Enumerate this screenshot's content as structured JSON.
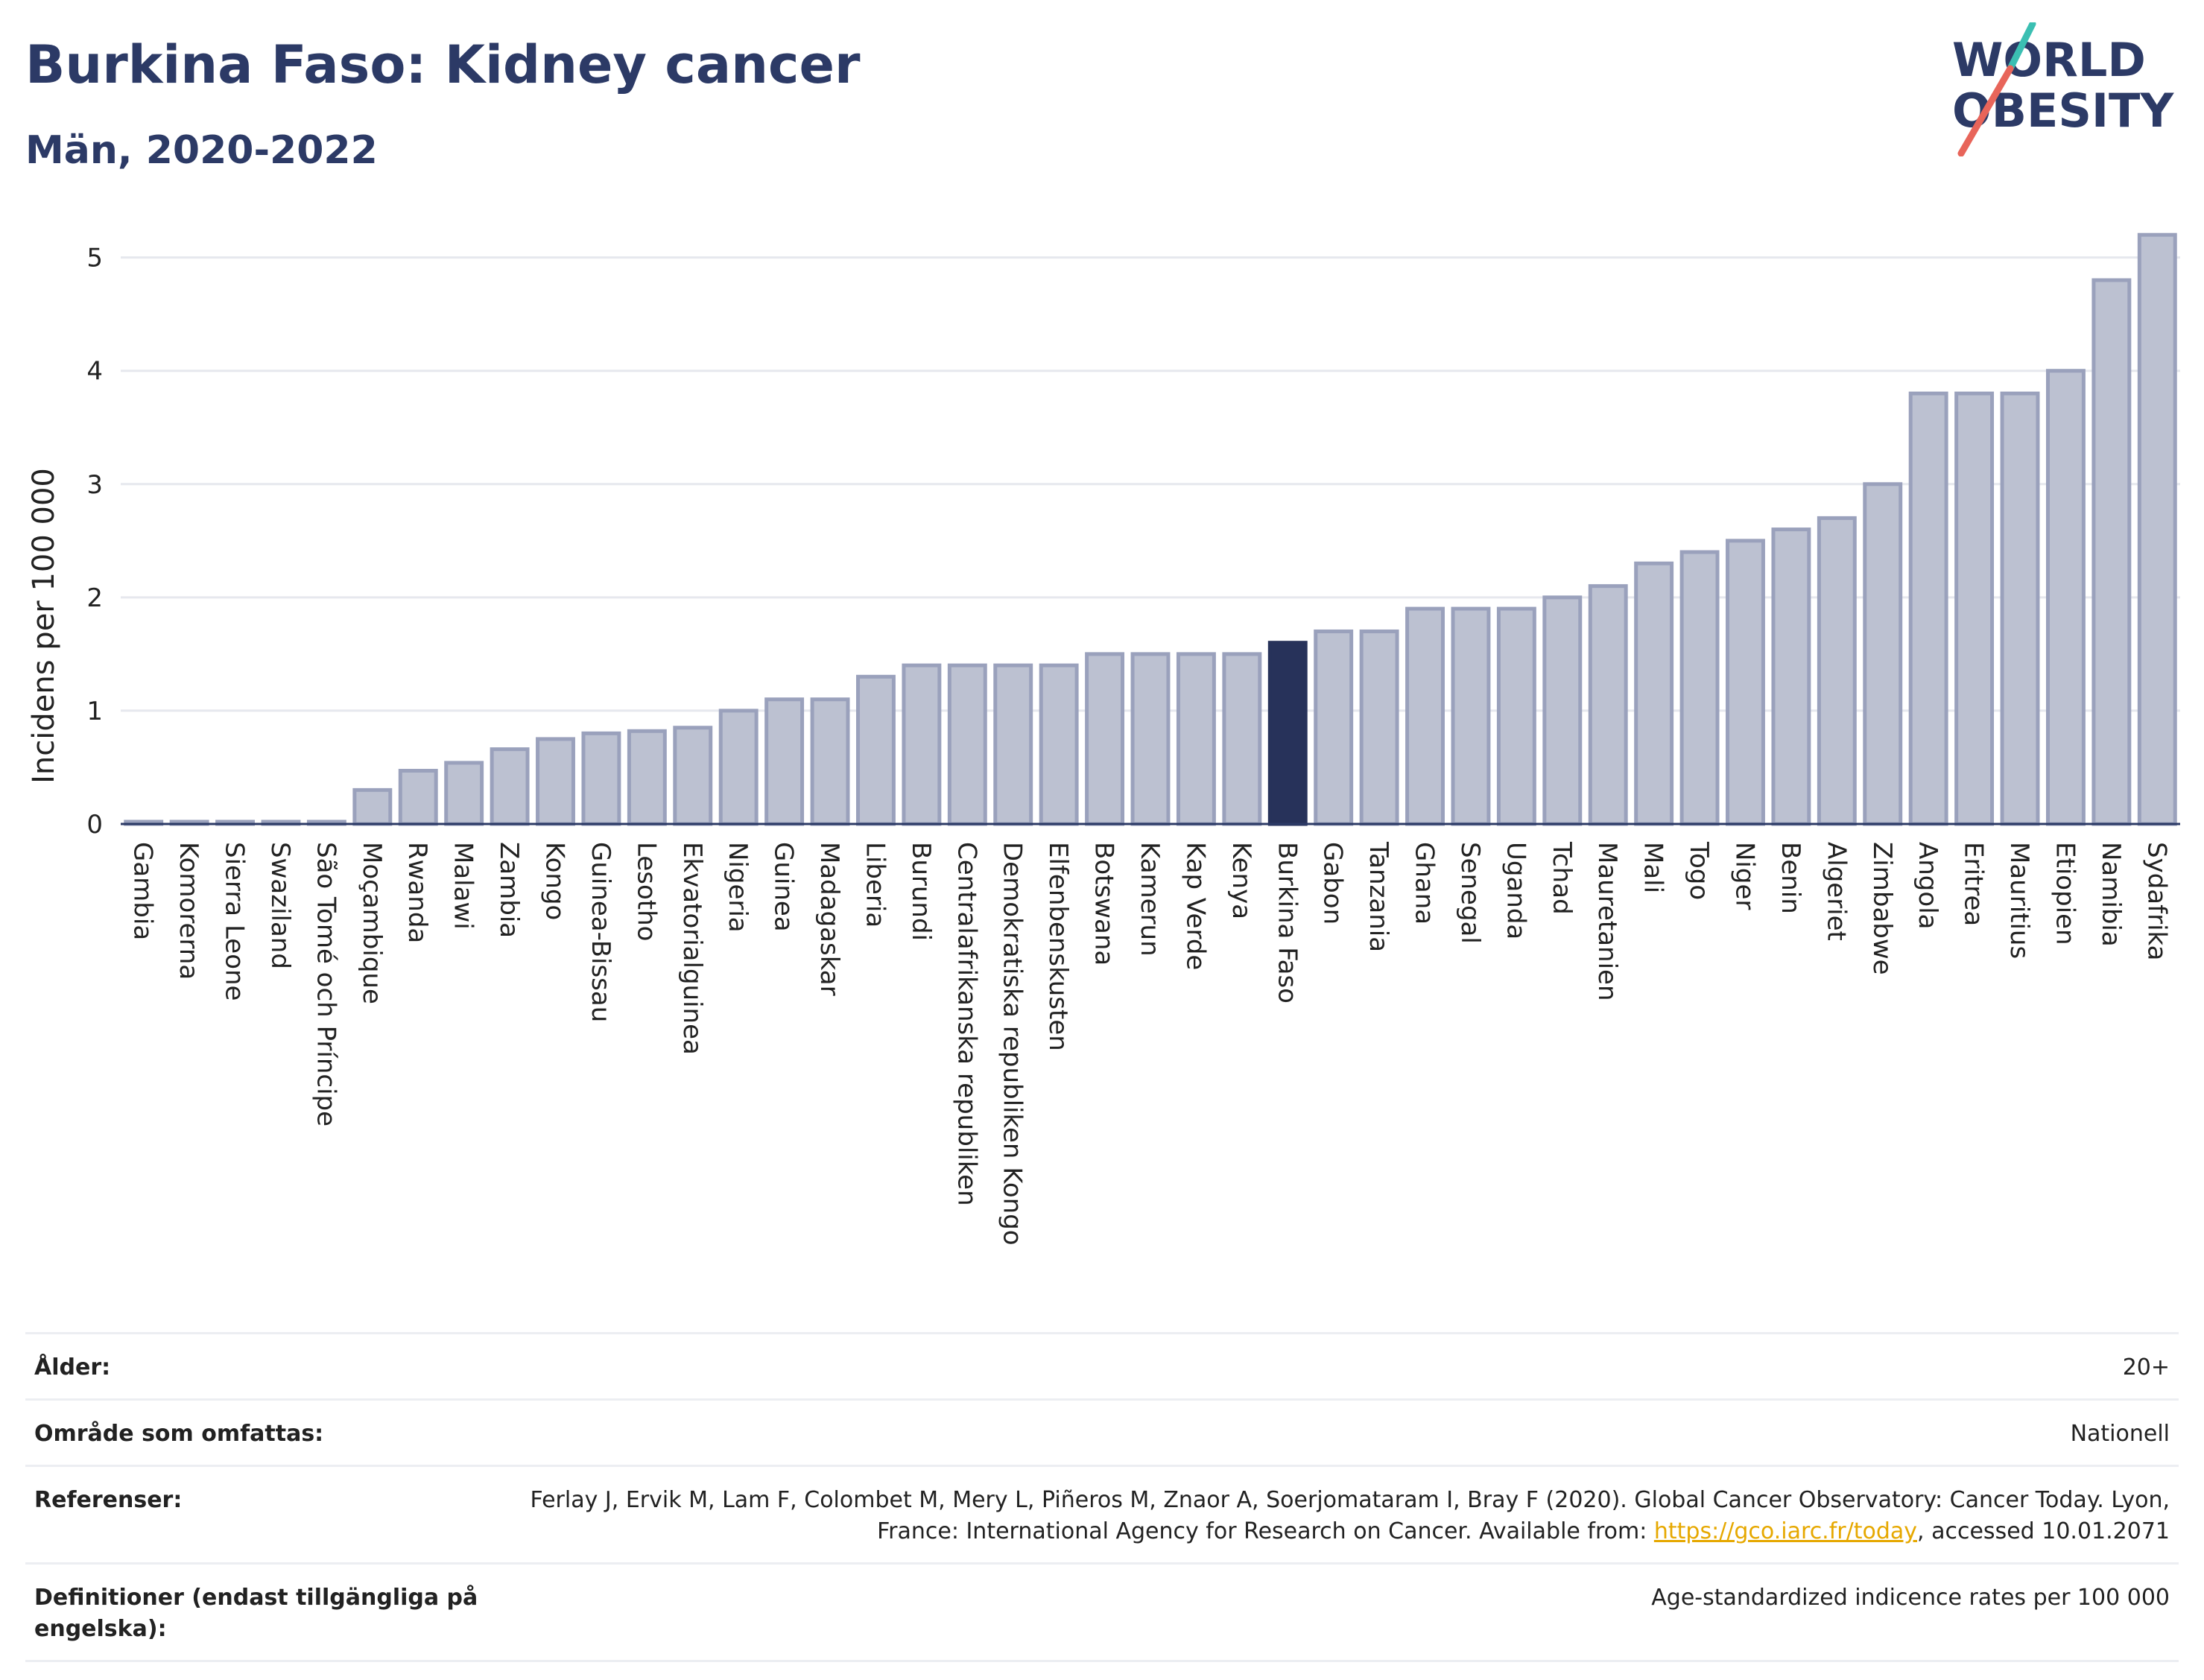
{
  "header": {
    "title": "Burkina Faso: Kidney cancer",
    "subtitle": "Män, 2020-2022"
  },
  "logo": {
    "line1": "WORLD",
    "line2": "OBESITY",
    "accent_colors": [
      "#3bbfb2",
      "#e8655a"
    ]
  },
  "colors": {
    "bar_default": "#bcc1d1",
    "bar_border": "#9aa1bc",
    "bar_highlight": "#27325a",
    "grid": "#e6e8ee",
    "axis": "#2c3a66"
  },
  "chart_data": {
    "type": "bar",
    "ylabel": "Incidens per 100 000",
    "ylim": [
      0,
      5.3
    ],
    "yticks": [
      0,
      1,
      2,
      3,
      4,
      5
    ],
    "grid": true,
    "highlight": "Burkina Faso",
    "categories": [
      "Gambia",
      "Komorerna",
      "Sierra Leone",
      "Swaziland",
      "São Tomé och Príncipe",
      "Moçambique",
      "Rwanda",
      "Malawi",
      "Zambia",
      "Kongo",
      "Guinea-Bissau",
      "Lesotho",
      "Ekvatorialguinea",
      "Nigeria",
      "Guinea",
      "Madagaskar",
      "Liberia",
      "Burundi",
      "Centralafrikanska republiken",
      "Demokratiska republiken Kongo",
      "Elfenbenskusten",
      "Botswana",
      "Kamerun",
      "Kap Verde",
      "Kenya",
      "Burkina Faso",
      "Gabon",
      "Tanzania",
      "Ghana",
      "Senegal",
      "Uganda",
      "Tchad",
      "Mauretanien",
      "Mali",
      "Togo",
      "Niger",
      "Benin",
      "Algeriet",
      "Zimbabwe",
      "Angola",
      "Eritrea",
      "Mauritius",
      "Etiopien",
      "Namibia",
      "Sydafrika"
    ],
    "values": [
      0.02,
      0.02,
      0.02,
      0.02,
      0.02,
      0.3,
      0.47,
      0.54,
      0.66,
      0.75,
      0.8,
      0.82,
      0.85,
      1.0,
      1.1,
      1.1,
      1.3,
      1.4,
      1.4,
      1.4,
      1.4,
      1.5,
      1.5,
      1.5,
      1.5,
      1.6,
      1.7,
      1.7,
      1.9,
      1.9,
      1.9,
      2.0,
      2.1,
      2.3,
      2.4,
      2.5,
      2.6,
      2.7,
      3.0,
      3.8,
      3.8,
      3.8,
      4.0,
      4.8,
      5.2
    ]
  },
  "info": {
    "rows": [
      {
        "label": "Ålder:",
        "value": "20+"
      },
      {
        "label": "Område som omfattas:",
        "value": "Nationell"
      },
      {
        "label": "Referenser:",
        "value_pre": "Ferlay J, Ervik M, Lam F, Colombet M, Mery L, Piñeros M, Znaor A, Soerjomataram I, Bray F (2020). Global Cancer Observatory: Cancer Today. Lyon, France: International Agency for Research on Cancer. Available from: ",
        "link": "https://gco.iarc.fr/today",
        "value_post": ", accessed 10.01.2071"
      },
      {
        "label": "Definitioner (endast tillgängliga på engelska):",
        "value": "Age-standardized indicence rates per 100 000"
      }
    ]
  }
}
